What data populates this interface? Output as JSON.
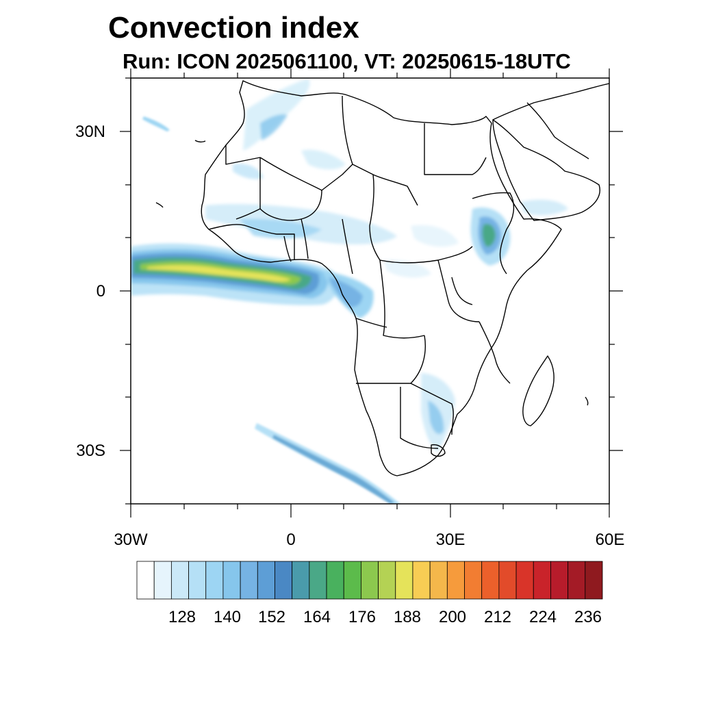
{
  "title": "Convection index",
  "subtitle": "Run: ICON 2025061100,  VT: 20250615-18UTC",
  "map": {
    "extent": {
      "lon_min": -30,
      "lon_max": 60,
      "lat_min": -40,
      "lat_max": 40
    },
    "lat_labels": [
      "30N",
      "0",
      "30S"
    ],
    "lon_labels": [
      "30W",
      "0",
      "30E",
      "60E"
    ],
    "land_color": "#ffffff",
    "coast_color": "#000000"
  },
  "colorbar": {
    "colors": [
      "#ffffff",
      "#e6f4fc",
      "#cbe9f8",
      "#b5e0f6",
      "#9dd5f3",
      "#86c6ec",
      "#76b3e4",
      "#5d9ed6",
      "#4a88c4",
      "#4a9bab",
      "#4aa887",
      "#49b15e",
      "#5cbb4b",
      "#8cc84e",
      "#b4d254",
      "#e5e35a",
      "#f8cd54",
      "#f4b74b",
      "#f69b3c",
      "#f27d32",
      "#ec602b",
      "#e24b2a",
      "#d93429",
      "#c9232a",
      "#b71c2b",
      "#a41b26",
      "#8f1a1f"
    ],
    "labels": [
      "128",
      "140",
      "152",
      "164",
      "176",
      "188",
      "200",
      "212",
      "224",
      "236"
    ]
  }
}
